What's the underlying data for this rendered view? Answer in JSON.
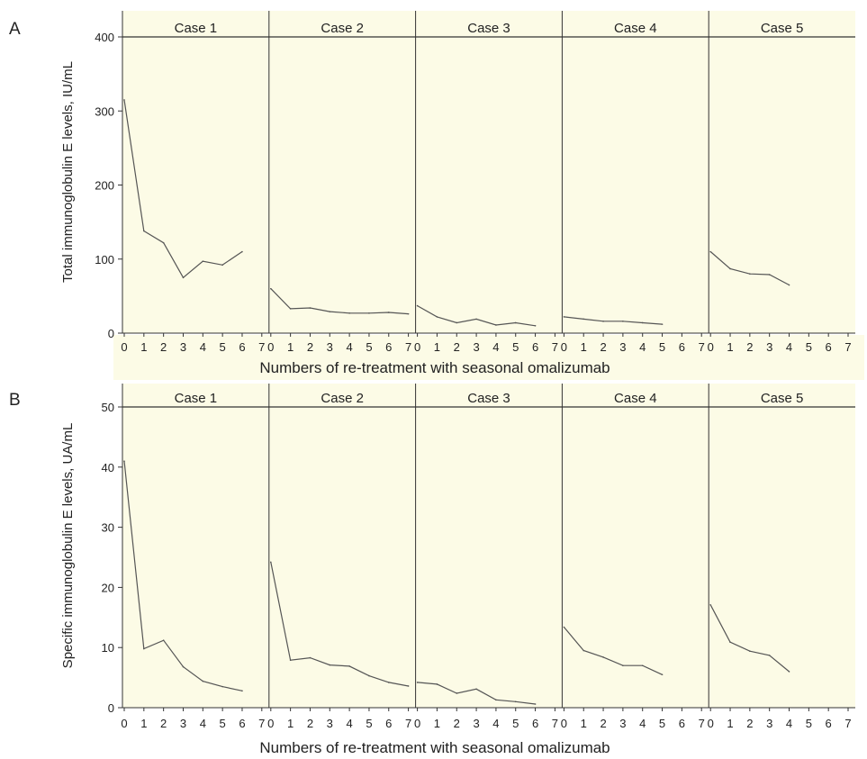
{
  "colors": {
    "plot_background": "#fcfbe6",
    "line": "#555555",
    "axis": "#333333",
    "text": "#222222"
  },
  "chart_data": [
    {
      "panel": "A",
      "type": "line",
      "ylabel": "Total immunoglobulin E levels, IU/mL",
      "xlabel": "Numbers of re-treatment with seasonal omalizumab",
      "ylim": [
        0,
        400
      ],
      "yticks": [
        0,
        100,
        200,
        300,
        400
      ],
      "xlim": [
        0,
        7
      ],
      "xticks": [
        0,
        1,
        2,
        3,
        4,
        5,
        6,
        7
      ],
      "grid": false,
      "series": [
        {
          "name": "Case 1",
          "x": [
            0,
            1,
            2,
            3,
            4,
            5,
            6
          ],
          "values": [
            315,
            138,
            122,
            75,
            97,
            92,
            110
          ]
        },
        {
          "name": "Case 2",
          "x": [
            0,
            1,
            2,
            3,
            4,
            5,
            6,
            7
          ],
          "values": [
            60,
            33,
            34,
            29,
            27,
            27,
            28,
            26
          ]
        },
        {
          "name": "Case 3",
          "x": [
            0,
            1,
            2,
            3,
            4,
            5,
            6
          ],
          "values": [
            37,
            22,
            14,
            19,
            11,
            14,
            10
          ]
        },
        {
          "name": "Case 4",
          "x": [
            0,
            1,
            2,
            3,
            4,
            5
          ],
          "values": [
            22,
            19,
            16,
            16,
            14,
            12
          ]
        },
        {
          "name": "Case 5",
          "x": [
            0,
            1,
            2,
            3,
            4
          ],
          "values": [
            110,
            87,
            80,
            79,
            65
          ]
        }
      ]
    },
    {
      "panel": "B",
      "type": "line",
      "ylabel": "Specific immunoglobulin E levels, UA/mL",
      "xlabel": "Numbers of re-treatment with seasonal omalizumab",
      "ylim": [
        0,
        50
      ],
      "yticks": [
        0,
        10,
        20,
        30,
        40,
        50
      ],
      "xlim": [
        0,
        7
      ],
      "xticks": [
        0,
        1,
        2,
        3,
        4,
        5,
        6,
        7
      ],
      "grid": false,
      "series": [
        {
          "name": "Case 1",
          "x": [
            0,
            1,
            2,
            3,
            4,
            5,
            6
          ],
          "values": [
            41,
            9.8,
            11.2,
            6.8,
            4.4,
            3.5,
            2.8
          ]
        },
        {
          "name": "Case 2",
          "x": [
            0,
            1,
            2,
            3,
            4,
            5,
            6,
            7
          ],
          "values": [
            24.2,
            7.9,
            8.3,
            7.1,
            6.9,
            5.3,
            4.2,
            3.6
          ]
        },
        {
          "name": "Case 3",
          "x": [
            0,
            1,
            2,
            3,
            4,
            5,
            6
          ],
          "values": [
            4.2,
            3.9,
            2.4,
            3.1,
            1.3,
            1.0,
            0.6
          ]
        },
        {
          "name": "Case 4",
          "x": [
            0,
            1,
            2,
            3,
            4,
            5
          ],
          "values": [
            13.4,
            9.5,
            8.4,
            7.0,
            7.0,
            5.5
          ]
        },
        {
          "name": "Case 5",
          "x": [
            0,
            1,
            2,
            3,
            4
          ],
          "values": [
            17.1,
            10.9,
            9.4,
            8.7,
            6.0
          ]
        }
      ]
    }
  ]
}
